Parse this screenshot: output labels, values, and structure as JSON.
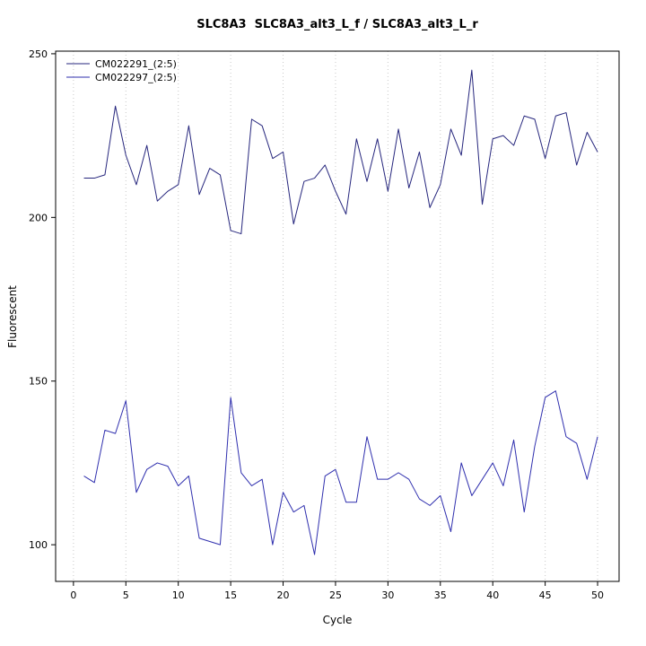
{
  "chart_data": {
    "type": "line",
    "title": "SLC8A3  SLC8A3_alt3_L_f / SLC8A3_alt3_L_r",
    "xlabel": "Cycle",
    "ylabel": "Fluorescent",
    "xlim": [
      0,
      50
    ],
    "ylim": [
      89,
      251
    ],
    "xticks": [
      0,
      5,
      10,
      15,
      20,
      25,
      30,
      35,
      40,
      45,
      50
    ],
    "yticks": [
      100,
      150,
      200,
      250
    ],
    "grid": "vertical-dotted",
    "grid_color": "#c8c8c8",
    "axis_color": "#000000",
    "legend_position": "top-left",
    "x": [
      1,
      2,
      3,
      4,
      5,
      6,
      7,
      8,
      9,
      10,
      11,
      12,
      13,
      14,
      15,
      16,
      17,
      18,
      19,
      20,
      21,
      22,
      23,
      24,
      25,
      26,
      27,
      28,
      29,
      30,
      31,
      32,
      33,
      34,
      35,
      36,
      37,
      38,
      39,
      40,
      41,
      42,
      43,
      44,
      45,
      46,
      47,
      48,
      49,
      50
    ],
    "series": [
      {
        "name": "CM022291_(2:5)",
        "color": "#26267d",
        "values": [
          212,
          212,
          213,
          234,
          219,
          210,
          222,
          205,
          208,
          210,
          228,
          207,
          215,
          213,
          196,
          195,
          230,
          228,
          218,
          220,
          198,
          211,
          212,
          216,
          208,
          201,
          224,
          211,
          224,
          208,
          227,
          209,
          220,
          203,
          210,
          227,
          219,
          245,
          204,
          224,
          225,
          222,
          231,
          230,
          218,
          231,
          232,
          216,
          226,
          220
        ]
      },
      {
        "name": "CM022297_(2:5)",
        "color": "#2f2fae",
        "values": [
          121,
          119,
          135,
          134,
          144,
          116,
          123,
          125,
          124,
          118,
          121,
          102,
          101,
          100,
          145,
          122,
          118,
          120,
          100,
          116,
          110,
          112,
          97,
          121,
          123,
          113,
          113,
          133,
          120,
          120,
          122,
          120,
          114,
          112,
          115,
          104,
          125,
          115,
          120,
          125,
          118,
          132,
          110,
          130,
          145,
          147,
          133,
          131,
          120,
          133
        ]
      }
    ]
  }
}
